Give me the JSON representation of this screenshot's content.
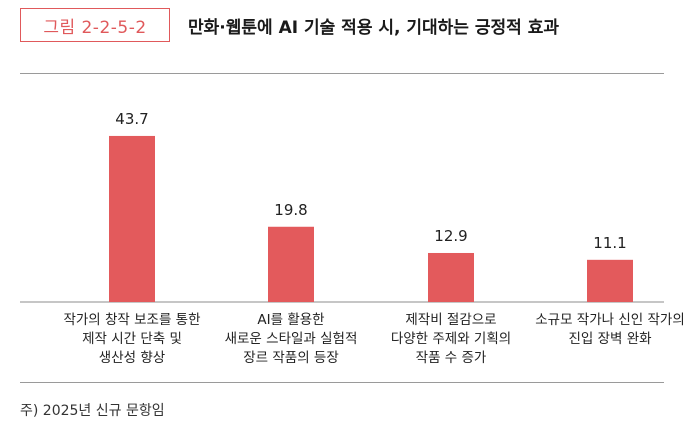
{
  "figure": {
    "label": "그림 2-2-5-2",
    "title": "만화·웹툰에 AI 기술 적용 시, 기대하는 긍정적 효과"
  },
  "colors": {
    "accent": "#e0595b",
    "bar": "#e35a5c",
    "axis": "#8c8c8c"
  },
  "chart_data": {
    "type": "bar",
    "title": "만화·웹툰에 AI 기술 적용 시, 기대하는 긍정적 효과",
    "categories": [
      [
        "작가의 창작 보조를 통한",
        "제작 시간 단축 및",
        "생산성 향상"
      ],
      [
        "AI를 활용한",
        "새로운 스타일과 실험적",
        "장르 작품의 등장"
      ],
      [
        "제작비 절감으로",
        "다양한 주제와 기획의",
        "작품 수 증가"
      ],
      [
        "소규모 작가나 신인 작가의",
        "진입 장벽 완화"
      ]
    ],
    "values": [
      43.7,
      19.8,
      12.9,
      11.1
    ],
    "value_labels": [
      "43.7",
      "19.8",
      "12.9",
      "11.1"
    ],
    "ylim": [
      0,
      50
    ],
    "grid": false,
    "legend": "none"
  },
  "footnote": "주) 2025년 신규 문항임"
}
